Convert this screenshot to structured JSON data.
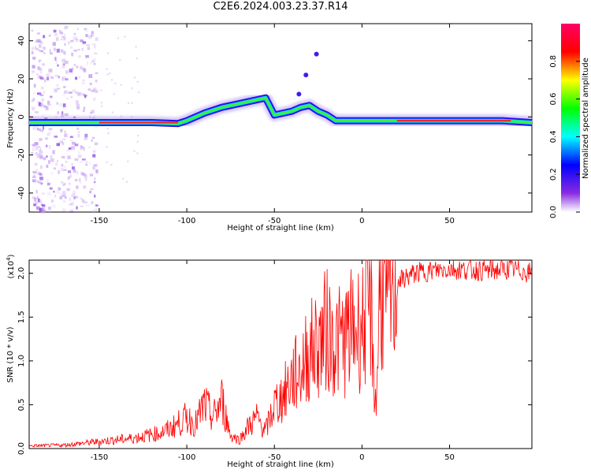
{
  "title": "C2E6.2024.003.23.37.R14",
  "chart_data": [
    {
      "type": "heatmap",
      "xlabel": "Height of straight line (km)",
      "ylabel": "Frequency (Hz)",
      "xlim": [
        -190,
        97
      ],
      "ylim": [
        -50,
        49
      ],
      "xticks": [
        -150,
        -100,
        -50,
        0,
        50
      ],
      "yticks": [
        -40,
        -20,
        0,
        20,
        40
      ],
      "colorbar": {
        "label": "Normalized spectral amplitude",
        "range": [
          0.0,
          1.0
        ],
        "ticks": [
          "0.0",
          "0.2",
          "0.4",
          "0.6",
          "0.8"
        ],
        "colors": [
          "#ffffff",
          "#8a2be2",
          "#0000ff",
          "#00ffff",
          "#00ff00",
          "#ffff00",
          "#ff0000",
          "#ff0066"
        ]
      },
      "ridge": {
        "x": [
          -190,
          -160,
          -150,
          -120,
          -105,
          -100,
          -90,
          -80,
          -70,
          -60,
          -55,
          -50,
          -45,
          -40,
          -35,
          -30,
          -25,
          -20,
          -15,
          0,
          20,
          50,
          80,
          97
        ],
        "freq": [
          -3,
          -3,
          -3,
          -3,
          -3.5,
          -2,
          2,
          5,
          7,
          9,
          10,
          1,
          2,
          3,
          5,
          6,
          3,
          1,
          -2,
          -2,
          -2,
          -2,
          -2,
          -3
        ]
      }
    },
    {
      "type": "line",
      "xlabel": "Height of straight line (km)",
      "ylabel": "SNR (10 * v/v)",
      "yscale_label": "(x10",
      "yscale_exp": "4",
      "color": "#ff0000",
      "xlim": [
        -190,
        97
      ],
      "ylim": [
        0,
        21500
      ],
      "xticks": [
        -150,
        -100,
        -50,
        0,
        50
      ],
      "yticks": [
        "0.0",
        "0.5",
        "1.0",
        "1.5",
        "2.0"
      ],
      "series": [
        {
          "x": [
            -190,
            -170,
            -150,
            -130,
            -115,
            -110,
            -100,
            -95,
            -90,
            -85,
            -80,
            -75,
            -70,
            -65,
            -60,
            -55,
            -50,
            -45,
            -40,
            -35,
            -30,
            -25,
            -20,
            -15,
            -10,
            -5,
            0,
            5,
            8,
            10,
            15,
            20,
            25,
            30,
            40,
            50,
            60,
            70,
            80,
            85,
            90,
            97
          ],
          "y": [
            300,
            400,
            800,
            1200,
            1800,
            2200,
            3500,
            2800,
            5000,
            3500,
            5500,
            1500,
            1000,
            2500,
            3500,
            2000,
            5000,
            6000,
            8000,
            9000,
            11000,
            12000,
            13500,
            12000,
            12500,
            13500,
            14000,
            16000,
            4000,
            18000,
            17000,
            19000,
            19500,
            20000,
            20300,
            20500,
            20400,
            20300,
            20400,
            20500,
            20300,
            20000
          ]
        }
      ]
    }
  ]
}
